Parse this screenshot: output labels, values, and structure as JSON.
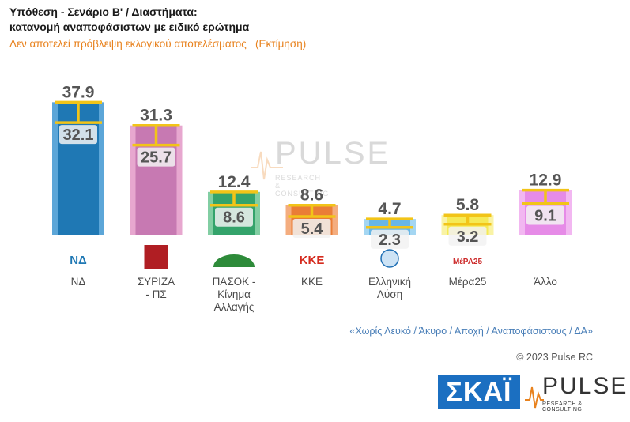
{
  "header": {
    "title_line1": "Υπόθεση - Σενάριο Β' / Διαστήματα:",
    "title_line2": "κατανομή αναποφάσιστων με ειδικό ερώτημα",
    "subtitle": "Δεν αποτελεί πρόβλεψη εκλογικού αποτελέσματος   (Εκτίμηση)"
  },
  "chart_data": {
    "type": "bar",
    "categories": [
      "ΝΔ",
      "ΣΥΡΙΖΑ - ΠΣ",
      "ΠΑΣΟΚ - Κίνημα Αλλαγής",
      "ΚΚΕ",
      "Ελληνική Λύση",
      "Μέρα25",
      "Άλλο"
    ],
    "series": [
      {
        "values": [
          37.9,
          31.3,
          12.4,
          8.6,
          4.7,
          5.8,
          12.9
        ]
      },
      {
        "values": [
          32.1,
          25.7,
          8.6,
          5.4,
          2.3,
          3.2,
          9.1
        ]
      }
    ],
    "colors_dark": [
      "#1f78b4",
      "#c779b2",
      "#34a36b",
      "#ea7d36",
      "#68b6e5",
      "#f5ea55",
      "#e68be7"
    ],
    "colors_light": [
      "#5ca6d8",
      "#e7a7cf",
      "#82cea3",
      "#f4ad7f",
      "#a4d6f2",
      "#f9f3a5",
      "#f2b7f1"
    ],
    "error_bar_color": "#f2c418",
    "ylim": [
      0,
      40
    ],
    "grid": false,
    "legend": "none"
  },
  "party_labels": [
    [
      "ΝΔ"
    ],
    [
      "ΣΥΡΙΖΑ",
      "- ΠΣ"
    ],
    [
      "ΠΑΣΟΚ -",
      "Κίνημα",
      "Αλλαγής"
    ],
    [
      "ΚΚΕ"
    ],
    [
      "Ελληνική",
      "Λύση"
    ],
    [
      "Μέρα25"
    ],
    [
      "Άλλο"
    ]
  ],
  "party_logos": [
    "ΝΔ",
    "ΣΥΡΙΖΑ",
    "ΠΑΣΟΚ",
    "ΚΚΕ",
    "Ελληνική Λύση",
    "ΜέΡΑ25",
    ""
  ],
  "footer": {
    "note": "«Χωρίς Λευκό / Άκυρο / Αποχή / Αναποφάσιστους / ΔΑ»",
    "copyright": "© 2023 Pulse RC",
    "skai_logo": "ΣΚΑΪ",
    "pulse_logo": "PULSE",
    "pulse_tagline": "RESEARCH & CONSULTING"
  }
}
